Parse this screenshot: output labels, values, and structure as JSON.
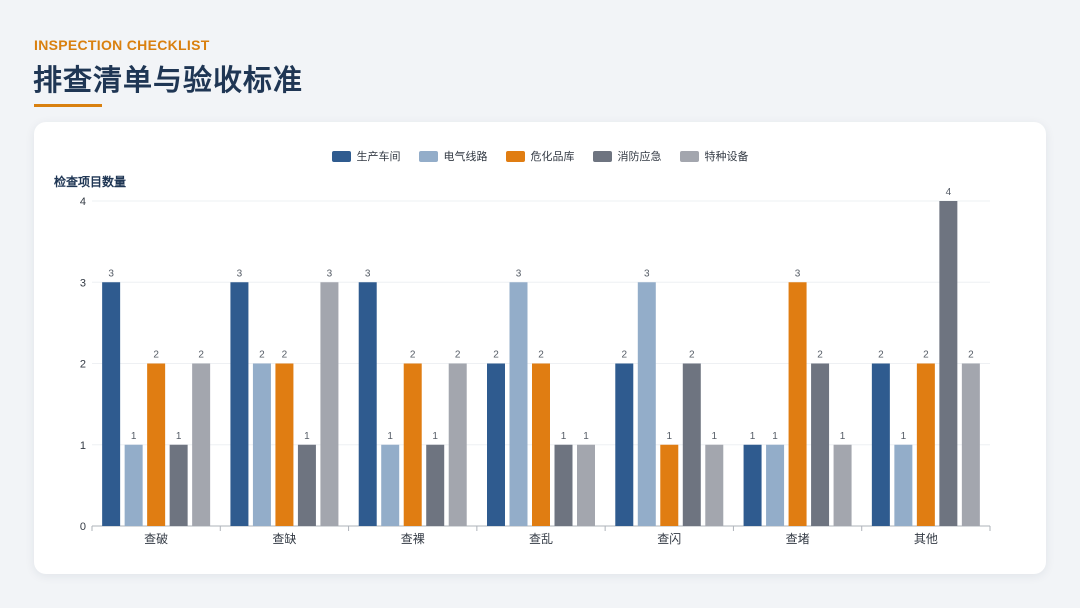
{
  "header": {
    "eyebrow": "INSPECTION CHECKLIST",
    "title": "排查清单与验收标准"
  },
  "chart_data": {
    "type": "bar",
    "ylabel": "检查项目数量",
    "ylim": [
      0,
      4
    ],
    "yticks": [
      0,
      1,
      2,
      3,
      4
    ],
    "grid": true,
    "legend_position": "top-center",
    "categories": [
      "查破",
      "查缺",
      "查裸",
      "查乱",
      "查闪",
      "查堵",
      "其他"
    ],
    "series": [
      {
        "name": "生产车间",
        "color": "#2f5b8f",
        "values": [
          3,
          3,
          3,
          2,
          2,
          1,
          2
        ]
      },
      {
        "name": "电气线路",
        "color": "#93adc9",
        "values": [
          1,
          2,
          1,
          3,
          3,
          1,
          1
        ]
      },
      {
        "name": "危化品库",
        "color": "#e07d12",
        "values": [
          2,
          2,
          2,
          2,
          1,
          3,
          2
        ]
      },
      {
        "name": "消防应急",
        "color": "#6e7480",
        "values": [
          1,
          1,
          1,
          1,
          2,
          2,
          4
        ]
      },
      {
        "name": "特种设备",
        "color": "#a3a6ae",
        "values": [
          2,
          3,
          2,
          1,
          1,
          1,
          2
        ]
      }
    ]
  }
}
